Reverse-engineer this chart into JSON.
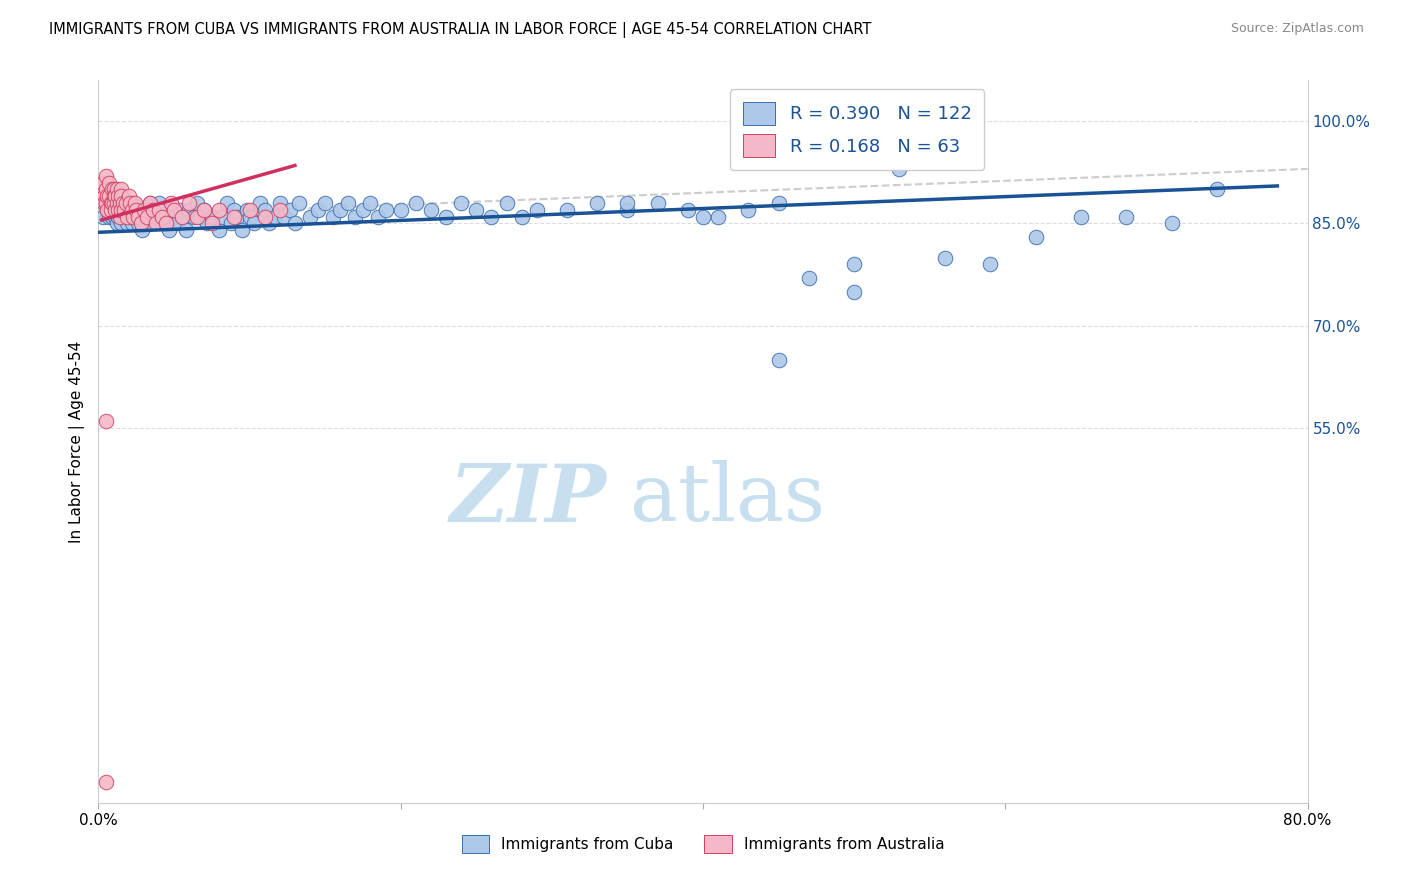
{
  "title": "IMMIGRANTS FROM CUBA VS IMMIGRANTS FROM AUSTRALIA IN LABOR FORCE | AGE 45-54 CORRELATION CHART",
  "source": "Source: ZipAtlas.com",
  "ylabel": "In Labor Force | Age 45-54",
  "x_min": 0.0,
  "x_max": 0.8,
  "y_min": 0.0,
  "y_max": 1.06,
  "y_ticks": [
    0.55,
    0.7,
    0.85,
    1.0
  ],
  "y_tick_labels": [
    "55.0%",
    "70.0%",
    "85.0%",
    "100.0%"
  ],
  "x_ticks": [
    0.0,
    0.2,
    0.4,
    0.6,
    0.8
  ],
  "x_tick_labels": [
    "0.0%",
    "",
    "",
    "",
    "80.0%"
  ],
  "blue_R": 0.39,
  "blue_N": 122,
  "pink_R": 0.168,
  "pink_N": 63,
  "blue_color": "#adc8e8",
  "blue_edge_color": "#3a6faf",
  "pink_color": "#f5b8c8",
  "pink_edge_color": "#d04060",
  "blue_line_color": "#1a5296",
  "pink_line_color": "#d03060",
  "diagonal_color": "#cccccc",
  "text_blue": "#1a5296",
  "watermark_color": "#c8dff0",
  "blue_scatter_x": [
    0.003,
    0.005,
    0.006,
    0.007,
    0.008,
    0.008,
    0.009,
    0.009,
    0.01,
    0.01,
    0.01,
    0.011,
    0.012,
    0.012,
    0.013,
    0.013,
    0.014,
    0.014,
    0.015,
    0.015,
    0.016,
    0.017,
    0.018,
    0.019,
    0.02,
    0.02,
    0.021,
    0.022,
    0.023,
    0.024,
    0.025,
    0.026,
    0.028,
    0.029,
    0.03,
    0.031,
    0.033,
    0.034,
    0.035,
    0.037,
    0.038,
    0.04,
    0.041,
    0.042,
    0.043,
    0.045,
    0.047,
    0.048,
    0.05,
    0.052,
    0.054,
    0.056,
    0.058,
    0.06,
    0.063,
    0.065,
    0.067,
    0.07,
    0.072,
    0.075,
    0.08,
    0.082,
    0.085,
    0.088,
    0.09,
    0.092,
    0.095,
    0.098,
    0.1,
    0.103,
    0.107,
    0.11,
    0.113,
    0.117,
    0.12,
    0.123,
    0.127,
    0.13,
    0.133,
    0.14,
    0.145,
    0.15,
    0.155,
    0.16,
    0.165,
    0.17,
    0.175,
    0.18,
    0.185,
    0.19,
    0.2,
    0.21,
    0.22,
    0.23,
    0.24,
    0.25,
    0.26,
    0.27,
    0.28,
    0.29,
    0.31,
    0.33,
    0.35,
    0.37,
    0.39,
    0.41,
    0.43,
    0.45,
    0.47,
    0.5,
    0.53,
    0.56,
    0.59,
    0.62,
    0.65,
    0.68,
    0.71,
    0.74,
    0.35,
    0.4,
    0.45,
    0.5
  ],
  "blue_scatter_y": [
    0.86,
    0.88,
    0.87,
    0.86,
    0.89,
    0.88,
    0.87,
    0.86,
    0.9,
    0.88,
    0.87,
    0.86,
    0.85,
    0.88,
    0.87,
    0.86,
    0.89,
    0.87,
    0.86,
    0.85,
    0.88,
    0.86,
    0.87,
    0.85,
    0.88,
    0.86,
    0.87,
    0.85,
    0.88,
    0.86,
    0.87,
    0.85,
    0.86,
    0.84,
    0.87,
    0.85,
    0.86,
    0.88,
    0.85,
    0.87,
    0.86,
    0.88,
    0.86,
    0.85,
    0.87,
    0.86,
    0.84,
    0.87,
    0.86,
    0.85,
    0.87,
    0.86,
    0.84,
    0.87,
    0.86,
    0.88,
    0.86,
    0.87,
    0.85,
    0.86,
    0.84,
    0.86,
    0.88,
    0.85,
    0.87,
    0.86,
    0.84,
    0.87,
    0.86,
    0.85,
    0.88,
    0.87,
    0.85,
    0.86,
    0.88,
    0.86,
    0.87,
    0.85,
    0.88,
    0.86,
    0.87,
    0.88,
    0.86,
    0.87,
    0.88,
    0.86,
    0.87,
    0.88,
    0.86,
    0.87,
    0.87,
    0.88,
    0.87,
    0.86,
    0.88,
    0.87,
    0.86,
    0.88,
    0.86,
    0.87,
    0.87,
    0.88,
    0.87,
    0.88,
    0.87,
    0.86,
    0.87,
    0.88,
    0.77,
    0.79,
    0.93,
    0.8,
    0.79,
    0.83,
    0.86,
    0.86,
    0.85,
    0.9,
    0.88,
    0.86,
    0.65,
    0.75
  ],
  "pink_scatter_x": [
    0.002,
    0.003,
    0.004,
    0.004,
    0.005,
    0.005,
    0.005,
    0.006,
    0.006,
    0.007,
    0.007,
    0.008,
    0.008,
    0.009,
    0.009,
    0.01,
    0.01,
    0.01,
    0.011,
    0.011,
    0.012,
    0.012,
    0.013,
    0.013,
    0.014,
    0.014,
    0.015,
    0.015,
    0.015,
    0.016,
    0.017,
    0.018,
    0.019,
    0.02,
    0.021,
    0.022,
    0.023,
    0.024,
    0.025,
    0.026,
    0.028,
    0.03,
    0.032,
    0.034,
    0.036,
    0.038,
    0.04,
    0.042,
    0.045,
    0.048,
    0.05,
    0.055,
    0.06,
    0.065,
    0.07,
    0.075,
    0.08,
    0.09,
    0.1,
    0.11,
    0.12,
    0.005,
    0.005
  ],
  "pink_scatter_y": [
    0.9,
    0.91,
    0.89,
    0.88,
    0.92,
    0.9,
    0.88,
    0.89,
    0.87,
    0.91,
    0.89,
    0.88,
    0.87,
    0.9,
    0.88,
    0.9,
    0.89,
    0.88,
    0.89,
    0.87,
    0.9,
    0.88,
    0.89,
    0.87,
    0.86,
    0.88,
    0.9,
    0.89,
    0.87,
    0.88,
    0.87,
    0.88,
    0.86,
    0.89,
    0.88,
    0.87,
    0.86,
    0.88,
    0.87,
    0.86,
    0.85,
    0.87,
    0.86,
    0.88,
    0.87,
    0.85,
    0.87,
    0.86,
    0.85,
    0.88,
    0.87,
    0.86,
    0.88,
    0.86,
    0.87,
    0.85,
    0.87,
    0.86,
    0.87,
    0.86,
    0.87,
    0.56,
    0.03
  ],
  "blue_line_x": [
    0.0,
    0.78
  ],
  "blue_line_y": [
    0.837,
    0.905
  ],
  "pink_line_x": [
    0.002,
    0.13
  ],
  "pink_line_y": [
    0.855,
    0.935
  ],
  "diag_line_x": [
    0.0,
    0.8
  ],
  "diag_line_y": [
    0.86,
    0.93
  ]
}
